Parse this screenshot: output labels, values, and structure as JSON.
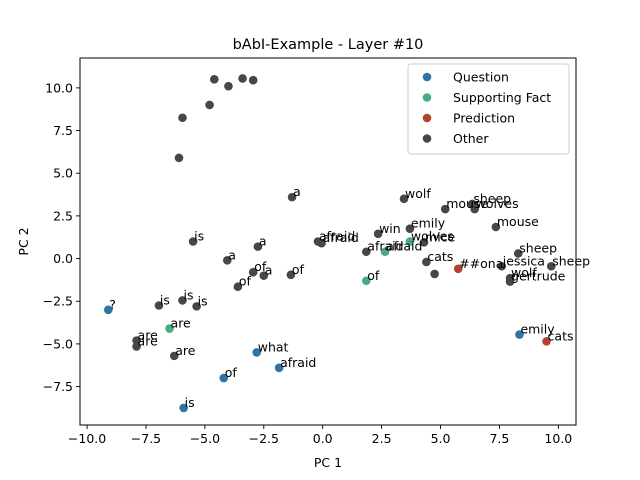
{
  "chart_data": {
    "type": "scatter",
    "title": "bAbI-Example - Layer #10",
    "xlabel": "PC 1",
    "ylabel": "PC 2",
    "xlim": [
      -10.3,
      10.75
    ],
    "ylim": [
      -9.75,
      11.75
    ],
    "xticks": [
      -10.0,
      -7.5,
      -5.0,
      -2.5,
      0.0,
      2.5,
      5.0,
      7.5,
      10.0
    ],
    "yticks": [
      -7.5,
      -5.0,
      -2.5,
      0.0,
      2.5,
      5.0,
      7.5,
      10.0
    ],
    "xtick_labels": [
      "−10.0",
      "−7.5",
      "−5.0",
      "−2.5",
      "0.0",
      "2.5",
      "5.0",
      "7.5",
      "10.0"
    ],
    "ytick_labels": [
      "−7.5",
      "−5.0",
      "−2.5",
      "0.0",
      "2.5",
      "5.0",
      "7.5",
      "10.0"
    ],
    "grid": false,
    "legend_position": "top-right",
    "series": [
      {
        "name": "Question",
        "color": "#2e75a6",
        "points": [
          {
            "x": -9.1,
            "y": -3.0,
            "label": "?"
          },
          {
            "x": -2.8,
            "y": -5.5,
            "label": "what"
          },
          {
            "x": -4.2,
            "y": -7.0,
            "label": "of"
          },
          {
            "x": -1.85,
            "y": -6.4,
            "label": "afraid"
          },
          {
            "x": -5.9,
            "y": -8.75,
            "label": "is"
          },
          {
            "x": 8.35,
            "y": -4.45,
            "label": "emily"
          }
        ]
      },
      {
        "name": "Supporting Fact",
        "color": "#46ad7e",
        "points": [
          {
            "x": -6.5,
            "y": -4.1,
            "label": "are"
          },
          {
            "x": 1.85,
            "y": -1.3,
            "label": "of"
          },
          {
            "x": 2.65,
            "y": 0.4,
            "label": "afraid"
          },
          {
            "x": 3.7,
            "y": 1.0,
            "label": "wolves"
          }
        ]
      },
      {
        "name": "Prediction",
        "color": "#b2442d",
        "points": [
          {
            "x": 5.75,
            "y": -0.6,
            "label": "##ona"
          },
          {
            "x": 9.5,
            "y": -4.85,
            "label": "cats"
          }
        ]
      },
      {
        "name": "Other",
        "color": "#474747",
        "points": [
          {
            "x": -4.6,
            "y": 10.5,
            "label": ""
          },
          {
            "x": -3.4,
            "y": 10.55,
            "label": ""
          },
          {
            "x": -2.95,
            "y": 10.45,
            "label": ""
          },
          {
            "x": -4.0,
            "y": 10.1,
            "label": ""
          },
          {
            "x": -4.8,
            "y": 9.0,
            "label": ""
          },
          {
            "x": -5.95,
            "y": 8.25,
            "label": ""
          },
          {
            "x": -6.1,
            "y": 5.9,
            "label": ""
          },
          {
            "x": -1.3,
            "y": 3.6,
            "label": "a"
          },
          {
            "x": -5.5,
            "y": 1.0,
            "label": "is"
          },
          {
            "x": -2.75,
            "y": 0.7,
            "label": "a"
          },
          {
            "x": -4.05,
            "y": -0.1,
            "label": "a"
          },
          {
            "x": -2.95,
            "y": -0.8,
            "label": "of"
          },
          {
            "x": -2.5,
            "y": -1.0,
            "label": "a"
          },
          {
            "x": -1.35,
            "y": -0.95,
            "label": "of"
          },
          {
            "x": -3.6,
            "y": -1.65,
            "label": "of"
          },
          {
            "x": -6.95,
            "y": -2.75,
            "label": "is"
          },
          {
            "x": -5.95,
            "y": -2.45,
            "label": "is"
          },
          {
            "x": -5.35,
            "y": -2.8,
            "label": "is"
          },
          {
            "x": -7.9,
            "y": -4.8,
            "label": "are"
          },
          {
            "x": -7.9,
            "y": -5.15,
            "label": "are"
          },
          {
            "x": -6.3,
            "y": -5.7,
            "label": "are"
          },
          {
            "x": -0.2,
            "y": 1.0,
            "label": "afraid"
          },
          {
            "x": -0.05,
            "y": 0.9,
            "label": "afraid"
          },
          {
            "x": 1.85,
            "y": 0.4,
            "label": "afraid"
          },
          {
            "x": 2.35,
            "y": 1.45,
            "label": "win"
          },
          {
            "x": 3.45,
            "y": 3.5,
            "label": "wolf"
          },
          {
            "x": 3.7,
            "y": 1.75,
            "label": "emily"
          },
          {
            "x": 4.3,
            "y": 0.95,
            "label": "mice"
          },
          {
            "x": 4.4,
            "y": -0.2,
            "label": "cats"
          },
          {
            "x": 4.75,
            "y": -0.9,
            "label": ""
          },
          {
            "x": 5.2,
            "y": 2.9,
            "label": "mouse"
          },
          {
            "x": 6.35,
            "y": 3.2,
            "label": "sheep"
          },
          {
            "x": 6.45,
            "y": 2.9,
            "label": "wolves"
          },
          {
            "x": 7.35,
            "y": 1.85,
            "label": "mouse"
          },
          {
            "x": 8.3,
            "y": 0.3,
            "label": "sheep"
          },
          {
            "x": 7.6,
            "y": -0.45,
            "label": "jessica"
          },
          {
            "x": 9.7,
            "y": -0.45,
            "label": "sheep"
          },
          {
            "x": 7.95,
            "y": -1.15,
            "label": "wolf"
          },
          {
            "x": 7.95,
            "y": -1.35,
            "label": "gertrude"
          }
        ]
      }
    ]
  }
}
